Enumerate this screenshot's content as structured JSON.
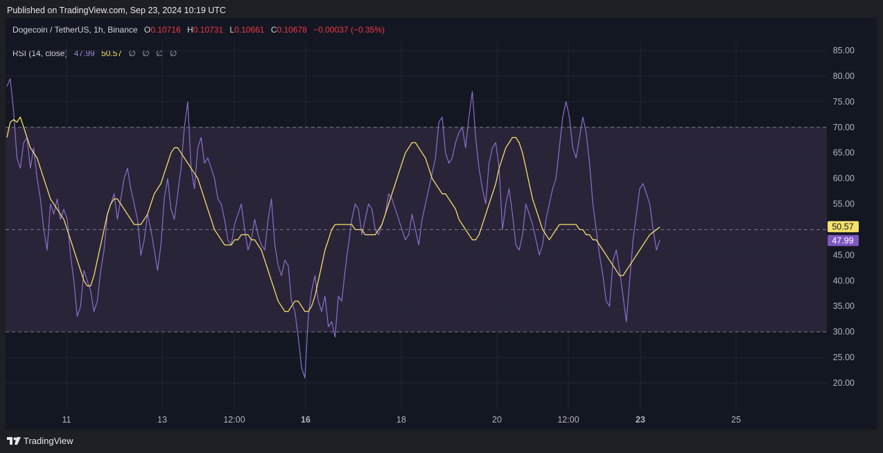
{
  "published": "Published on TradingView.com, Sep 23, 2024 10:19 UTC",
  "symbol": {
    "name": "Dogecoin / TetherUS, 1h, Binance",
    "open_label": "O",
    "open": "0.10716",
    "high_label": "H",
    "high": "0.10731",
    "low_label": "L",
    "low": "0.10661",
    "close_label": "C",
    "close": "0.10678",
    "change": "−0.00037 (−0.35%)"
  },
  "indicator": {
    "name": "RSI (14, close)",
    "rsi_value": "47.99",
    "ma_value": "50.57",
    "empty_values": [
      "∅",
      "∅",
      "∅",
      "∅"
    ]
  },
  "colors": {
    "rsi_line": "#8c6fcf",
    "ma_line": "#f5e16b",
    "band_fill": "#2a2438",
    "negative": "#f23645",
    "grid": "#232734"
  },
  "footer": {
    "brand": "TradingView",
    "icon": "tradingview-logo-icon"
  },
  "chart_data": {
    "type": "line",
    "y_ticks": [
      "85.00",
      "80.00",
      "75.00",
      "70.00",
      "65.00",
      "60.00",
      "55.00",
      "50.00",
      "45.00",
      "40.00",
      "35.00",
      "30.00",
      "25.00",
      "20.00"
    ],
    "x_ticks": [
      "11",
      "13",
      "12:00",
      "16",
      "18",
      "20",
      "12:00",
      "23",
      "25"
    ],
    "ylim": [
      15,
      88
    ],
    "levels": [
      70,
      50,
      30
    ],
    "last_labels": {
      "ma": "50.57",
      "rsi": "47.99"
    },
    "series": [
      {
        "key": "rsi",
        "values": [
          78,
          79.5,
          73,
          64,
          62,
          67,
          68,
          62,
          66,
          60,
          56,
          50,
          46,
          55,
          53,
          56,
          52,
          54,
          52,
          45,
          40,
          33,
          35,
          42,
          40,
          38,
          34,
          36,
          42,
          46,
          53,
          55,
          57,
          52,
          56,
          60,
          62,
          58,
          55,
          52,
          45,
          48,
          53,
          50,
          46,
          42,
          47,
          56,
          60,
          54,
          52,
          57,
          62,
          70,
          75,
          62,
          58,
          66,
          68,
          63,
          64,
          62,
          60,
          56,
          55,
          52,
          48,
          47,
          51,
          53,
          55,
          50,
          46,
          48,
          52,
          49,
          47,
          46,
          52,
          56,
          47,
          43,
          41,
          44,
          43,
          36,
          34,
          29,
          23,
          21,
          33,
          38,
          41,
          36,
          34,
          37,
          31,
          32,
          29,
          37,
          36,
          42,
          47,
          52,
          55,
          54,
          49,
          52,
          55,
          54,
          50,
          49,
          51,
          53,
          57,
          56,
          54,
          52,
          50,
          48,
          49,
          53,
          50,
          47,
          52,
          55,
          58,
          61,
          64,
          71,
          72,
          65,
          63,
          64,
          67,
          69,
          70,
          66,
          72,
          77,
          68,
          62,
          58,
          55,
          63,
          66,
          67,
          62,
          50,
          55,
          58,
          53,
          47,
          46,
          49,
          55,
          53,
          51,
          48,
          45,
          47,
          52,
          55,
          58,
          60,
          66,
          72,
          75,
          72,
          66,
          64,
          68,
          72,
          69,
          63,
          55,
          50,
          45,
          41,
          36,
          35,
          44,
          46,
          42,
          37,
          32,
          40,
          48,
          53,
          58,
          59,
          57,
          55,
          50,
          46,
          48
        ]
      },
      {
        "key": "ma",
        "values": [
          68,
          71,
          71.5,
          71,
          72,
          70,
          68,
          66,
          65,
          64,
          62,
          60,
          58,
          56,
          55,
          54,
          53,
          52,
          50,
          48,
          46,
          44,
          42,
          40,
          39,
          39,
          41,
          44,
          47,
          50,
          53,
          55,
          56,
          56,
          55,
          54,
          53,
          52,
          51,
          51,
          51,
          52,
          53,
          55,
          57,
          58,
          59,
          61,
          63,
          65,
          66,
          66,
          65,
          64,
          63,
          62,
          61,
          60,
          58,
          56,
          54,
          52,
          50,
          49,
          48,
          47,
          47,
          47,
          48,
          48,
          49,
          49,
          49,
          48,
          48,
          47,
          46,
          44,
          42,
          40,
          38,
          36,
          35,
          34,
          34,
          35,
          36,
          36,
          35,
          34,
          34,
          35,
          37,
          40,
          43,
          46,
          48,
          50,
          51,
          51,
          51,
          51,
          51,
          51,
          50,
          50,
          50,
          49,
          49,
          49,
          49,
          50,
          51,
          53,
          55,
          57,
          59,
          61,
          63,
          65,
          66,
          67,
          67,
          66,
          65,
          64,
          62,
          60,
          59,
          58,
          57,
          57,
          56,
          55,
          54,
          52,
          51,
          50,
          49,
          48,
          48,
          49,
          51,
          53,
          55,
          57,
          59,
          62,
          64,
          66,
          67,
          68,
          68,
          67,
          65,
          62,
          59,
          56,
          54,
          52,
          50,
          49,
          48,
          49,
          50,
          51,
          51,
          51,
          51,
          51,
          51,
          50,
          50,
          49,
          49,
          48,
          48,
          47,
          46,
          45,
          44,
          43,
          42,
          41,
          41,
          42,
          43,
          44,
          45,
          46,
          47,
          48,
          49,
          49.5,
          50,
          50.5
        ]
      }
    ]
  }
}
